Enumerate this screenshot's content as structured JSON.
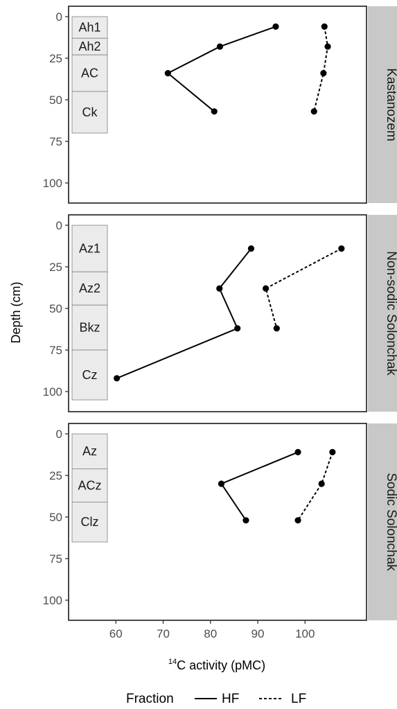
{
  "chart_data": {
    "type": "line",
    "xlabel_superscript": "14",
    "xlabel_main": "C activity (pMC)",
    "ylabel": "Depth (cm)",
    "xlim": [
      50,
      113
    ],
    "ylim": [
      0,
      105
    ],
    "x_ticks": [
      60,
      70,
      80,
      90,
      100
    ],
    "y_ticks": [
      0,
      25,
      50,
      75,
      100
    ],
    "legend": {
      "title": "Fraction",
      "position": "bottom",
      "entries": [
        {
          "name": "HF",
          "linetype": "solid"
        },
        {
          "name": "LF",
          "linetype": "dashed"
        }
      ]
    },
    "panels": [
      {
        "name": "Kastanozem",
        "horizons": [
          {
            "label": "Ah1",
            "top": 0,
            "bottom": 13
          },
          {
            "label": "Ah2",
            "top": 13,
            "bottom": 23
          },
          {
            "label": "AC",
            "top": 23,
            "bottom": 45
          },
          {
            "label": "Ck",
            "top": 45,
            "bottom": 70
          }
        ],
        "series": [
          {
            "name": "HF",
            "points": [
              {
                "x": 93.8,
                "y": 6
              },
              {
                "x": 82,
                "y": 18
              },
              {
                "x": 71,
                "y": 34
              },
              {
                "x": 80.8,
                "y": 57
              }
            ]
          },
          {
            "name": "LF",
            "points": [
              {
                "x": 104.1,
                "y": 6
              },
              {
                "x": 104.8,
                "y": 18
              },
              {
                "x": 103.9,
                "y": 34
              },
              {
                "x": 101.9,
                "y": 57
              }
            ]
          }
        ]
      },
      {
        "name": "Non-sodic Solonchak",
        "horizons": [
          {
            "label": "Az1",
            "top": 0,
            "bottom": 28
          },
          {
            "label": "Az2",
            "top": 28,
            "bottom": 48
          },
          {
            "label": "Bkz",
            "top": 48,
            "bottom": 75
          },
          {
            "label": "Cz",
            "top": 75,
            "bottom": 105
          }
        ],
        "series": [
          {
            "name": "HF",
            "points": [
              {
                "x": 88.6,
                "y": 14
              },
              {
                "x": 81.9,
                "y": 38
              },
              {
                "x": 85.7,
                "y": 62
              },
              {
                "x": 60.2,
                "y": 92
              }
            ]
          },
          {
            "name": "LF",
            "points": [
              {
                "x": 107.7,
                "y": 14
              },
              {
                "x": 91.7,
                "y": 38
              },
              {
                "x": 94,
                "y": 62
              }
            ]
          }
        ]
      },
      {
        "name": "Sodic Solonchak",
        "horizons": [
          {
            "label": "Az",
            "top": 0,
            "bottom": 21
          },
          {
            "label": "ACz",
            "top": 21,
            "bottom": 41
          },
          {
            "label": "Clz",
            "top": 41,
            "bottom": 65
          }
        ],
        "series": [
          {
            "name": "HF",
            "points": [
              {
                "x": 98.5,
                "y": 11
              },
              {
                "x": 82.3,
                "y": 30
              },
              {
                "x": 87.5,
                "y": 52
              }
            ]
          },
          {
            "name": "LF",
            "points": [
              {
                "x": 105.8,
                "y": 11
              },
              {
                "x": 103.5,
                "y": 30
              },
              {
                "x": 98.5,
                "y": 52
              }
            ]
          }
        ]
      }
    ]
  }
}
